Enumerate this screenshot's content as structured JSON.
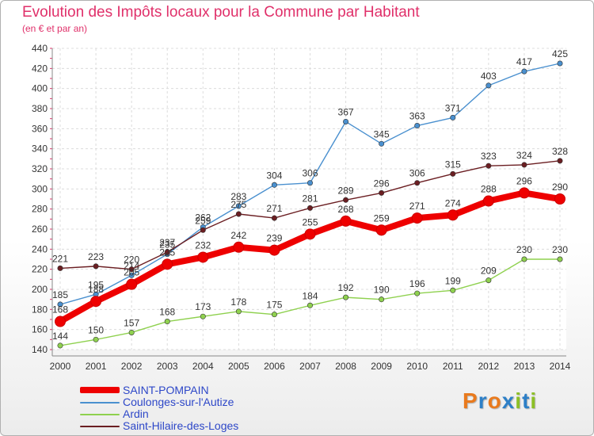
{
  "title": "Evolution des Impôts locaux pour la Commune par Habitant",
  "subtitle": "(en € et par an)",
  "logo": {
    "text": "Proxiti",
    "letters": [
      {
        "ch": "P",
        "color": "#e97a1d"
      },
      {
        "ch": "r",
        "color": "#2d7fc7"
      },
      {
        "ch": "o",
        "color": "#e97a1d"
      },
      {
        "ch": "x",
        "color": "#2d7fc7"
      },
      {
        "ch": "i",
        "color": "#8cbf26"
      },
      {
        "ch": "t",
        "color": "#2d7fc7"
      },
      {
        "ch": "i",
        "color": "#8cbf26"
      }
    ]
  },
  "chart_data": {
    "type": "line",
    "title": "Evolution des Impôts locaux pour la Commune par Habitant",
    "subtitle": "(en € et par an)",
    "xlabel": "",
    "ylabel": "",
    "x": [
      "2000",
      "2001",
      "2002",
      "2003",
      "2004",
      "2005",
      "2006",
      "2007",
      "2008",
      "2009",
      "2010",
      "2011",
      "2012",
      "2013",
      "2014"
    ],
    "ylim": [
      140,
      440
    ],
    "yticks": [
      140,
      160,
      180,
      200,
      220,
      240,
      260,
      280,
      300,
      320,
      340,
      360,
      380,
      400,
      420,
      440
    ],
    "grid": true,
    "legend_position": "bottom-left",
    "series": [
      {
        "name": "Coulonges-sur-l'Autize",
        "color": "#4a90cf",
        "values": [
          185,
          195,
          214,
          235,
          262,
          283,
          304,
          306,
          367,
          345,
          363,
          371,
          403,
          417,
          425
        ]
      },
      {
        "name": "Saint-Hilaire-des-Loges",
        "color": "#6b1e22",
        "values": [
          221,
          223,
          220,
          237,
          259,
          275,
          271,
          281,
          289,
          296,
          306,
          315,
          323,
          324,
          328
        ]
      },
      {
        "name": "Ardin",
        "color": "#8fd14f",
        "values": [
          144,
          150,
          157,
          168,
          173,
          178,
          175,
          184,
          192,
          190,
          196,
          199,
          209,
          230,
          230
        ]
      },
      {
        "name": "SAINT-POMPAIN",
        "color": "#ee0000",
        "values": [
          168,
          188,
          205,
          225,
          232,
          242,
          239,
          255,
          268,
          259,
          271,
          274,
          288,
          296,
          290
        ]
      }
    ],
    "legend": [
      "SAINT-POMPAIN",
      "Coulonges-sur-l'Autize",
      "Ardin",
      "Saint-Hilaire-des-Loges"
    ]
  }
}
